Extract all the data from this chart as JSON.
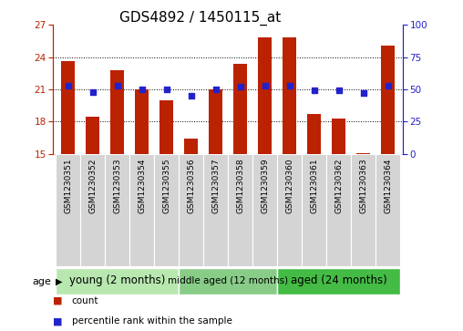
{
  "title": "GDS4892 / 1450115_at",
  "samples": [
    "GSM1230351",
    "GSM1230352",
    "GSM1230353",
    "GSM1230354",
    "GSM1230355",
    "GSM1230356",
    "GSM1230357",
    "GSM1230358",
    "GSM1230359",
    "GSM1230360",
    "GSM1230361",
    "GSM1230362",
    "GSM1230363",
    "GSM1230364"
  ],
  "count_values": [
    23.6,
    18.5,
    22.8,
    21.0,
    20.0,
    16.4,
    21.0,
    23.4,
    25.8,
    25.8,
    18.7,
    18.3,
    15.1,
    25.1
  ],
  "percentile_values": [
    53,
    48,
    53,
    50,
    50,
    45,
    50,
    52,
    53,
    53,
    49,
    49,
    47,
    53
  ],
  "ylim_left": [
    15,
    27
  ],
  "ylim_right": [
    0,
    100
  ],
  "yticks_left": [
    15,
    18,
    21,
    24,
    27
  ],
  "yticks_right": [
    0,
    25,
    50,
    75,
    100
  ],
  "grid_values": [
    18,
    21,
    24
  ],
  "bar_color": "#bb2200",
  "dot_color": "#2222cc",
  "bg_color": "#ffffff",
  "groups": [
    {
      "label": "young (2 months)",
      "start": 0,
      "end": 5,
      "color": "#b8e8b0"
    },
    {
      "label": "middle aged (12 months)",
      "start": 5,
      "end": 9,
      "color": "#88cc88"
    },
    {
      "label": "aged (24 months)",
      "start": 9,
      "end": 14,
      "color": "#44bb44"
    }
  ],
  "age_label": "age",
  "legend_count_label": "count",
  "legend_percentile_label": "percentile rank within the sample",
  "title_fontsize": 11,
  "tick_fontsize": 7.5,
  "sample_fontsize": 6.5
}
